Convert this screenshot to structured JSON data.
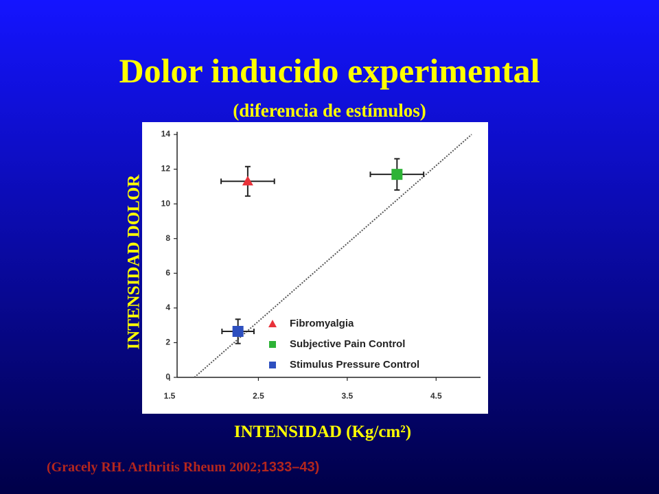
{
  "chart_data": {
    "type": "scatter",
    "title": "Dolor inducido experimental",
    "subtitle": "(diferencia de estímulos)",
    "x_label": "INTENSIDAD (Kg/cm²)",
    "y_label": "INTENSIDAD DOLOR",
    "xlim": [
      1.5,
      5.0
    ],
    "ylim": [
      0,
      14
    ],
    "xticks": [
      1.5,
      2.5,
      3.5,
      4.5
    ],
    "yticks": [
      0,
      2,
      4,
      6,
      8,
      10,
      12,
      14
    ],
    "legend": "lower right",
    "series": [
      {
        "name": "Fibromyalgia",
        "color": "#e8323a",
        "marker": "triangle",
        "x": [
          2.38
        ],
        "values": [
          11.3
        ],
        "x_error": [
          0.3
        ],
        "y_error": [
          0.85
        ]
      },
      {
        "name": "Subjective Pain Control",
        "color": "#2db336",
        "marker": "square",
        "x": [
          4.06
        ],
        "values": [
          11.7
        ],
        "x_error": [
          0.3
        ],
        "y_error": [
          0.9
        ]
      },
      {
        "name": "Stimulus Pressure Control",
        "color": "#2d4fbf",
        "marker": "square",
        "x": [
          2.27
        ],
        "values": [
          2.65
        ],
        "x_error": [
          0.18
        ],
        "y_error": [
          0.7
        ]
      }
    ],
    "trend_line": {
      "x": [
        1.78,
        4.9
      ],
      "values": [
        0,
        14
      ]
    },
    "citation": {
      "text": "(Gracely RH. Arthritis Rheum 2002;",
      "pages": "1333–43)"
    }
  }
}
